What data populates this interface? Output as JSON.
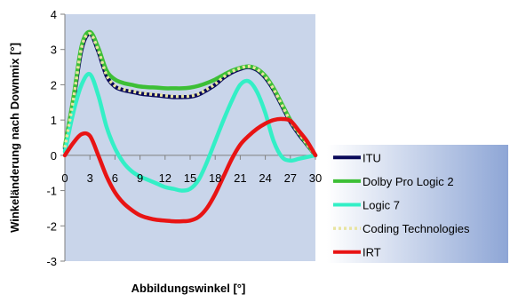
{
  "chart_data": {
    "type": "line",
    "xlabel": "Abbildungswinkel [°]",
    "ylabel": "Winkeländerung nach Downmix [°]",
    "xlim": [
      0,
      30
    ],
    "ylim": [
      -3,
      4
    ],
    "x_ticks": [
      "0",
      "3",
      "6",
      "9",
      "12",
      "15",
      "18",
      "21",
      "24",
      "27",
      "30"
    ],
    "y_ticks": [
      "-3",
      "-2",
      "-1",
      "0",
      "1",
      "2",
      "3",
      "4"
    ],
    "x": [
      0,
      1,
      2,
      3,
      4,
      5,
      6,
      7,
      8,
      9,
      10,
      11,
      12,
      13,
      14,
      15,
      16,
      17,
      18,
      19,
      20,
      21,
      22,
      23,
      24,
      25,
      26,
      27,
      28,
      29,
      30
    ],
    "legend_position": "bottom-right",
    "plot_background": "#c9d5ea",
    "series": [
      {
        "name": "ITU",
        "color": "#0a0a5a",
        "values": [
          0.2,
          1.5,
          3.0,
          3.45,
          2.95,
          2.25,
          1.95,
          1.85,
          1.8,
          1.75,
          1.72,
          1.7,
          1.67,
          1.65,
          1.65,
          1.66,
          1.72,
          1.85,
          2.0,
          2.2,
          2.35,
          2.45,
          2.5,
          2.42,
          2.2,
          1.85,
          1.4,
          0.95,
          0.6,
          0.3,
          0.0
        ]
      },
      {
        "name": "Dolby Pro Logic 2",
        "color": "#3dbf36",
        "values": [
          0.25,
          1.6,
          3.1,
          3.5,
          3.05,
          2.4,
          2.15,
          2.05,
          2.0,
          1.95,
          1.93,
          1.92,
          1.9,
          1.9,
          1.9,
          1.92,
          1.97,
          2.05,
          2.15,
          2.28,
          2.4,
          2.48,
          2.52,
          2.45,
          2.25,
          1.9,
          1.45,
          1.0,
          0.65,
          0.32,
          0.0
        ]
      },
      {
        "name": "Logic 7",
        "color": "#33efc6",
        "values": [
          0.1,
          1.2,
          2.0,
          2.3,
          1.7,
          0.8,
          0.2,
          -0.2,
          -0.45,
          -0.6,
          -0.7,
          -0.8,
          -0.9,
          -0.95,
          -1.0,
          -0.95,
          -0.7,
          -0.2,
          0.4,
          1.0,
          1.55,
          2.0,
          2.1,
          1.8,
          1.2,
          0.4,
          -0.05,
          -0.15,
          -0.1,
          -0.05,
          0.0
        ]
      },
      {
        "name": "Coding Technologies",
        "color": "#e8e4a0",
        "dashed": true,
        "values": [
          0.22,
          1.55,
          3.05,
          3.45,
          2.97,
          2.27,
          1.97,
          1.87,
          1.82,
          1.77,
          1.74,
          1.72,
          1.69,
          1.67,
          1.67,
          1.68,
          1.74,
          1.87,
          2.02,
          2.22,
          2.37,
          2.47,
          2.52,
          2.44,
          2.22,
          1.87,
          1.42,
          0.97,
          0.62,
          0.31,
          0.0
        ]
      },
      {
        "name": "IRT",
        "color": "#e81414",
        "values": [
          0.0,
          0.35,
          0.6,
          0.55,
          0.0,
          -0.6,
          -1.05,
          -1.35,
          -1.55,
          -1.7,
          -1.78,
          -1.83,
          -1.85,
          -1.87,
          -1.87,
          -1.85,
          -1.75,
          -1.5,
          -1.1,
          -0.6,
          -0.1,
          0.3,
          0.55,
          0.75,
          0.9,
          1.0,
          1.03,
          0.98,
          0.7,
          0.4,
          0.0
        ]
      }
    ]
  }
}
